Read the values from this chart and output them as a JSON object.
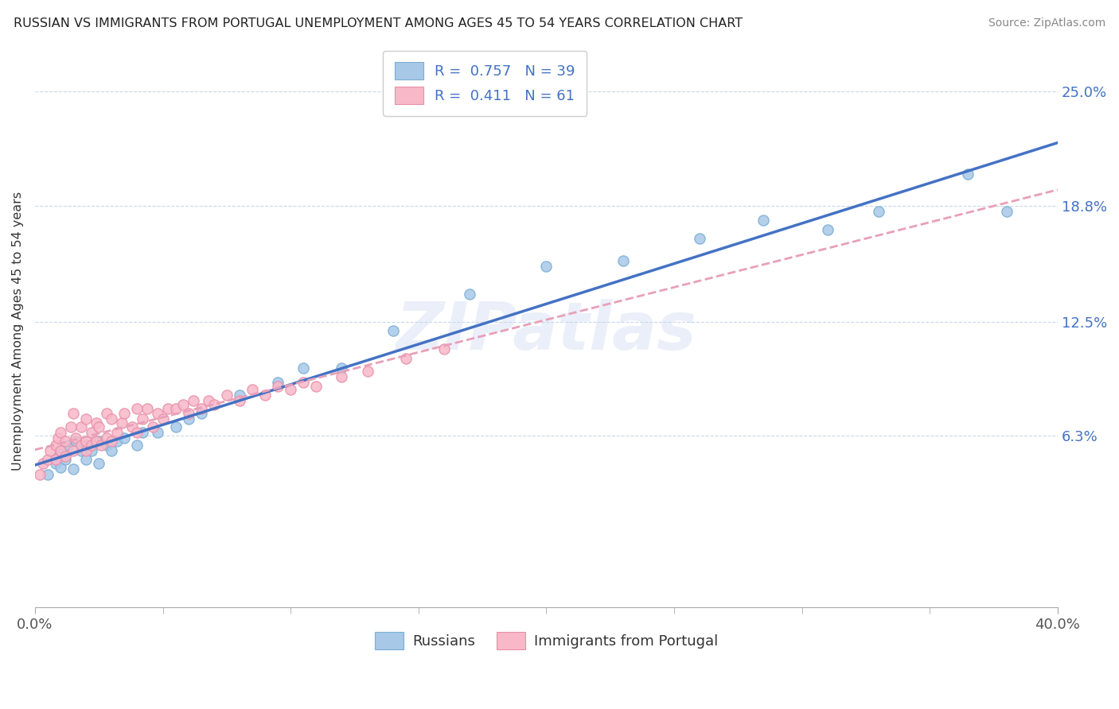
{
  "title": "RUSSIAN VS IMMIGRANTS FROM PORTUGAL UNEMPLOYMENT AMONG AGES 45 TO 54 YEARS CORRELATION CHART",
  "source": "Source: ZipAtlas.com",
  "ylabel": "Unemployment Among Ages 45 to 54 years",
  "xlim": [
    0.0,
    0.4
  ],
  "ylim": [
    -0.03,
    0.27
  ],
  "yticks": [
    0.063,
    0.125,
    0.188,
    0.25
  ],
  "ytick_labels": [
    "6.3%",
    "12.5%",
    "18.8%",
    "25.0%"
  ],
  "xtick_vals": [
    0.0,
    0.4
  ],
  "xtick_labels": [
    "0.0%",
    "40.0%"
  ],
  "watermark": "ZIPatlas",
  "russian_R": "0.757",
  "russian_N": "39",
  "portugal_R": "0.411",
  "portugal_N": "61",
  "russian_color": "#a8c8e8",
  "russian_edge_color": "#7aaed4",
  "portugal_color": "#f8b8c8",
  "portugal_edge_color": "#e890a8",
  "russian_line_color": "#4472c4",
  "portugal_line_color": "#e8a0b8",
  "legend_label_russian": "Russians",
  "legend_label_portugal": "Immigrants from Portugal",
  "russians_x": [
    0.005,
    0.008,
    0.009,
    0.01,
    0.01,
    0.012,
    0.013,
    0.015,
    0.016,
    0.018,
    0.02,
    0.02,
    0.022,
    0.025,
    0.025,
    0.028,
    0.03,
    0.032,
    0.035,
    0.04,
    0.042,
    0.048,
    0.055,
    0.06,
    0.065,
    0.08,
    0.095,
    0.105,
    0.12,
    0.14,
    0.17,
    0.2,
    0.23,
    0.26,
    0.285,
    0.31,
    0.33,
    0.365,
    0.38
  ],
  "russians_y": [
    0.042,
    0.048,
    0.052,
    0.046,
    0.055,
    0.05,
    0.058,
    0.045,
    0.06,
    0.055,
    0.05,
    0.058,
    0.055,
    0.06,
    0.048,
    0.058,
    0.055,
    0.06,
    0.062,
    0.058,
    0.065,
    0.065,
    0.068,
    0.072,
    0.075,
    0.085,
    0.092,
    0.1,
    0.1,
    0.12,
    0.14,
    0.155,
    0.158,
    0.17,
    0.18,
    0.175,
    0.185,
    0.205,
    0.185
  ],
  "portugal_x": [
    0.002,
    0.003,
    0.005,
    0.006,
    0.008,
    0.008,
    0.009,
    0.01,
    0.01,
    0.012,
    0.012,
    0.014,
    0.015,
    0.015,
    0.016,
    0.018,
    0.018,
    0.02,
    0.02,
    0.02,
    0.022,
    0.022,
    0.024,
    0.024,
    0.025,
    0.026,
    0.028,
    0.028,
    0.03,
    0.03,
    0.032,
    0.034,
    0.035,
    0.038,
    0.04,
    0.04,
    0.042,
    0.044,
    0.046,
    0.048,
    0.05,
    0.052,
    0.055,
    0.058,
    0.06,
    0.062,
    0.065,
    0.068,
    0.07,
    0.075,
    0.08,
    0.085,
    0.09,
    0.095,
    0.1,
    0.105,
    0.11,
    0.12,
    0.13,
    0.145,
    0.16
  ],
  "portugal_y": [
    0.042,
    0.048,
    0.05,
    0.055,
    0.05,
    0.058,
    0.062,
    0.055,
    0.065,
    0.052,
    0.06,
    0.068,
    0.055,
    0.075,
    0.062,
    0.058,
    0.068,
    0.055,
    0.06,
    0.072,
    0.058,
    0.065,
    0.06,
    0.07,
    0.068,
    0.058,
    0.062,
    0.075,
    0.06,
    0.072,
    0.065,
    0.07,
    0.075,
    0.068,
    0.065,
    0.078,
    0.072,
    0.078,
    0.068,
    0.075,
    0.072,
    0.078,
    0.078,
    0.08,
    0.075,
    0.082,
    0.078,
    0.082,
    0.08,
    0.085,
    0.082,
    0.088,
    0.085,
    0.09,
    0.088,
    0.092,
    0.09,
    0.095,
    0.098,
    0.105,
    0.11
  ]
}
